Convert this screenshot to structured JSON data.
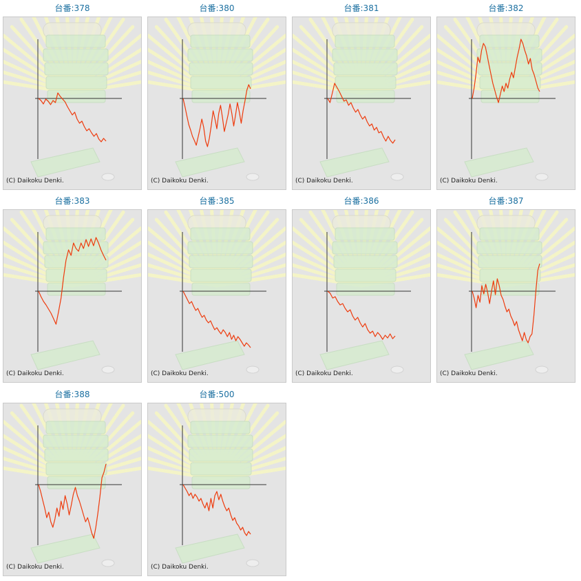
{
  "colors": {
    "line": "#ee3a0c",
    "axis": "#333333",
    "title": "#1a6fa0",
    "panel_bg": "#e4e4e4",
    "rays": "#f6f6c4",
    "machine": "#d6ecd0"
  },
  "panel": {
    "copyright": "(C) Daikoku Denki."
  },
  "chart_data": [
    {
      "type": "line",
      "title": "台番:378",
      "y": [
        0,
        -3,
        -8,
        -1,
        -4,
        -9,
        -3,
        -6,
        8,
        3,
        -1,
        -5,
        -12,
        -18,
        -24,
        -20,
        -30,
        -36,
        -33,
        -41,
        -47,
        -44,
        -50,
        -55,
        -51,
        -59,
        -63,
        -58,
        -62
      ]
    },
    {
      "type": "line",
      "title": "台番:380",
      "y": [
        0,
        -12,
        -25,
        -38,
        -46,
        -55,
        -61,
        -68,
        -56,
        -44,
        -30,
        -42,
        -62,
        -70,
        -58,
        -40,
        -18,
        -30,
        -44,
        -22,
        -10,
        -28,
        -48,
        -36,
        -24,
        -8,
        -22,
        -40,
        -24,
        -6,
        -20,
        -36,
        -18,
        -4,
        12,
        20,
        14
      ]
    },
    {
      "type": "line",
      "title": "台番:381",
      "y": [
        0,
        -6,
        8,
        22,
        16,
        10,
        3,
        -4,
        -2,
        -10,
        -6,
        -14,
        -20,
        -16,
        -24,
        -30,
        -26,
        -34,
        -40,
        -37,
        -46,
        -42,
        -50,
        -48,
        -56,
        -62,
        -55,
        -61,
        -65,
        -60
      ]
    },
    {
      "type": "line",
      "title": "台番:382",
      "y": [
        0,
        15,
        35,
        60,
        52,
        70,
        80,
        75,
        62,
        48,
        35,
        22,
        12,
        2,
        -6,
        6,
        18,
        10,
        22,
        15,
        28,
        38,
        30,
        45,
        60,
        72,
        88,
        80,
        70,
        62,
        50,
        58,
        42,
        35,
        25,
        15,
        10
      ]
    },
    {
      "type": "line",
      "title": "台番:383",
      "y": [
        0,
        -8,
        -15,
        -20,
        -26,
        -32,
        -40,
        -48,
        -30,
        -10,
        20,
        45,
        60,
        52,
        70,
        62,
        58,
        70,
        62,
        75,
        65,
        76,
        66,
        78,
        70,
        60,
        52,
        45
      ]
    },
    {
      "type": "line",
      "title": "台番:385",
      "y": [
        0,
        -6,
        -12,
        -18,
        -15,
        -22,
        -28,
        -25,
        -32,
        -38,
        -35,
        -42,
        -46,
        -43,
        -50,
        -56,
        -53,
        -58,
        -62,
        -56,
        -60,
        -66,
        -60,
        -70,
        -64,
        -72,
        -66,
        -70,
        -75,
        -80,
        -75,
        -78,
        -82
      ]
    },
    {
      "type": "line",
      "title": "台番:386",
      "y": [
        0,
        -3,
        -10,
        -8,
        -15,
        -20,
        -18,
        -25,
        -30,
        -27,
        -36,
        -42,
        -38,
        -46,
        -52,
        -47,
        -56,
        -61,
        -58,
        -66,
        -60,
        -64,
        -70,
        -64,
        -68,
        -62,
        -69,
        -65
      ]
    },
    {
      "type": "line",
      "title": "台番:387",
      "y": [
        0,
        -10,
        -24,
        -6,
        -16,
        8,
        -4,
        10,
        -2,
        -18,
        0,
        15,
        -5,
        18,
        8,
        -6,
        -12,
        -22,
        -30,
        -26,
        -36,
        -42,
        -50,
        -44,
        -56,
        -64,
        -72,
        -60,
        -70,
        -75,
        -66,
        -62,
        -35,
        0,
        30,
        40
      ]
    },
    {
      "type": "line",
      "title": "台番:388",
      "y": [
        0,
        -10,
        -22,
        -34,
        -48,
        -40,
        -54,
        -62,
        -50,
        -34,
        -46,
        -24,
        -36,
        -16,
        -28,
        -44,
        -30,
        -14,
        -4,
        -16,
        -24,
        -34,
        -44,
        -54,
        -48,
        -58,
        -70,
        -78,
        -62,
        -42,
        -18,
        10,
        18,
        30
      ]
    },
    {
      "type": "line",
      "title": "台番:500",
      "y": [
        0,
        -5,
        -10,
        -16,
        -12,
        -20,
        -14,
        -18,
        -24,
        -20,
        -28,
        -34,
        -26,
        -38,
        -20,
        -34,
        -16,
        -10,
        -22,
        -14,
        -24,
        -32,
        -38,
        -34,
        -44,
        -52,
        -48,
        -56,
        -60,
        -66,
        -62,
        -70,
        -74,
        -68,
        -72
      ]
    }
  ]
}
